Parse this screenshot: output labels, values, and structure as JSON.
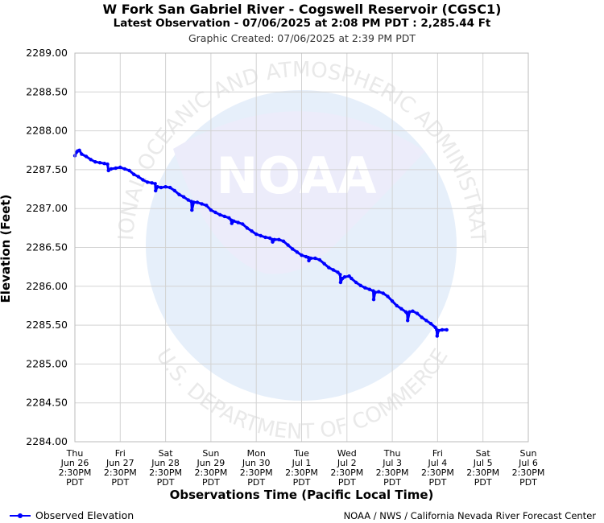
{
  "header": {
    "title": "W Fork San Gabriel River - Cogswell Reservoir (CGSC1)",
    "subtitle": "Latest Observation - 07/06/2025 at 2:08 PM PDT : 2,285.44 Ft",
    "created": "Graphic Created: 07/06/2025 at 2:39 PM PDT"
  },
  "footer": {
    "legend_label": "Observed Elevation",
    "credit": "NOAA / NWS / California Nevada River Forecast Center"
  },
  "watermark": {
    "top_text": "NATIONAL OCEANIC AND ATMOSPHERIC ADMINISTRATION",
    "bottom_text": "U.S. DEPARTMENT OF COMMERCE",
    "logo_text": "NOAA"
  },
  "chart_data": {
    "type": "line",
    "title": "W Fork San Gabriel River - Cogswell Reservoir (CGSC1)",
    "xlabel": "Observations Time (Pacific Local Time)",
    "ylabel": "Elevation (Feet)",
    "ylim": [
      2284.0,
      2289.0
    ],
    "yticks": [
      "2284.00",
      "2284.50",
      "2285.00",
      "2285.50",
      "2286.00",
      "2286.50",
      "2287.00",
      "2287.50",
      "2288.00",
      "2288.50",
      "2289.00"
    ],
    "xticks": [
      [
        "Thu",
        "Jun 26",
        "2:30PM",
        "PDT"
      ],
      [
        "Fri",
        "Jun 27",
        "2:30PM",
        "PDT"
      ],
      [
        "Sat",
        "Jun 28",
        "2:30PM",
        "PDT"
      ],
      [
        "Sun",
        "Jun 29",
        "2:30PM",
        "PDT"
      ],
      [
        "Mon",
        "Jun 30",
        "2:30PM",
        "PDT"
      ],
      [
        "Tue",
        "Jul 1",
        "2:30PM",
        "PDT"
      ],
      [
        "Wed",
        "Jul 2",
        "2:30PM",
        "PDT"
      ],
      [
        "Thu",
        "Jul 3",
        "2:30PM",
        "PDT"
      ],
      [
        "Fri",
        "Jul 4",
        "2:30PM",
        "PDT"
      ],
      [
        "Sat",
        "Jul 5",
        "2:30PM",
        "PDT"
      ],
      [
        "Sun",
        "Jul 6",
        "2:30PM",
        "PDT"
      ]
    ],
    "xlim_days": [
      0,
      10
    ],
    "grid": true,
    "legend_position": "bottom-left",
    "series": [
      {
        "name": "Observed Elevation",
        "color": "#0000ff",
        "points": [
          [
            0.0,
            2287.68
          ],
          [
            0.03,
            2287.72
          ],
          [
            0.06,
            2287.74
          ],
          [
            0.1,
            2287.75
          ],
          [
            0.15,
            2287.7
          ],
          [
            0.25,
            2287.67
          ],
          [
            0.35,
            2287.63
          ],
          [
            0.45,
            2287.6
          ],
          [
            0.55,
            2287.59
          ],
          [
            0.65,
            2287.58
          ],
          [
            0.72,
            2287.57
          ],
          [
            0.74,
            2287.49
          ],
          [
            0.8,
            2287.51
          ],
          [
            0.9,
            2287.52
          ],
          [
            1.0,
            2287.53
          ],
          [
            1.1,
            2287.51
          ],
          [
            1.2,
            2287.49
          ],
          [
            1.3,
            2287.44
          ],
          [
            1.4,
            2287.41
          ],
          [
            1.5,
            2287.37
          ],
          [
            1.6,
            2287.34
          ],
          [
            1.7,
            2287.33
          ],
          [
            1.77,
            2287.32
          ],
          [
            1.78,
            2287.23
          ],
          [
            1.82,
            2287.28
          ],
          [
            1.9,
            2287.27
          ],
          [
            2.0,
            2287.28
          ],
          [
            2.1,
            2287.27
          ],
          [
            2.2,
            2287.23
          ],
          [
            2.3,
            2287.18
          ],
          [
            2.4,
            2287.15
          ],
          [
            2.5,
            2287.11
          ],
          [
            2.57,
            2287.09
          ],
          [
            2.58,
            2286.98
          ],
          [
            2.62,
            2287.08
          ],
          [
            2.7,
            2287.08
          ],
          [
            2.8,
            2287.06
          ],
          [
            2.9,
            2287.04
          ],
          [
            3.0,
            2286.98
          ],
          [
            3.1,
            2286.95
          ],
          [
            3.2,
            2286.92
          ],
          [
            3.3,
            2286.9
          ],
          [
            3.4,
            2286.88
          ],
          [
            3.45,
            2286.85
          ],
          [
            3.46,
            2286.81
          ],
          [
            3.5,
            2286.84
          ],
          [
            3.6,
            2286.82
          ],
          [
            3.7,
            2286.8
          ],
          [
            3.8,
            2286.75
          ],
          [
            3.9,
            2286.71
          ],
          [
            4.0,
            2286.67
          ],
          [
            4.1,
            2286.65
          ],
          [
            4.2,
            2286.63
          ],
          [
            4.3,
            2286.62
          ],
          [
            4.35,
            2286.6
          ],
          [
            4.36,
            2286.57
          ],
          [
            4.4,
            2286.6
          ],
          [
            4.5,
            2286.6
          ],
          [
            4.6,
            2286.58
          ],
          [
            4.7,
            2286.53
          ],
          [
            4.8,
            2286.48
          ],
          [
            4.9,
            2286.44
          ],
          [
            5.0,
            2286.4
          ],
          [
            5.1,
            2286.38
          ],
          [
            5.15,
            2286.37
          ],
          [
            5.16,
            2286.33
          ],
          [
            5.2,
            2286.36
          ],
          [
            5.3,
            2286.36
          ],
          [
            5.4,
            2286.34
          ],
          [
            5.5,
            2286.29
          ],
          [
            5.6,
            2286.24
          ],
          [
            5.7,
            2286.21
          ],
          [
            5.8,
            2286.18
          ],
          [
            5.85,
            2286.15
          ],
          [
            5.86,
            2286.05
          ],
          [
            5.9,
            2286.1
          ],
          [
            5.95,
            2286.12
          ],
          [
            6.05,
            2286.13
          ],
          [
            6.1,
            2286.1
          ],
          [
            6.2,
            2286.05
          ],
          [
            6.3,
            2286.01
          ],
          [
            6.4,
            2285.98
          ],
          [
            6.5,
            2285.96
          ],
          [
            6.58,
            2285.94
          ],
          [
            6.59,
            2285.83
          ],
          [
            6.62,
            2285.92
          ],
          [
            6.7,
            2285.93
          ],
          [
            6.8,
            2285.91
          ],
          [
            6.9,
            2285.87
          ],
          [
            7.0,
            2285.81
          ],
          [
            7.1,
            2285.75
          ],
          [
            7.2,
            2285.71
          ],
          [
            7.3,
            2285.67
          ],
          [
            7.33,
            2285.65
          ],
          [
            7.34,
            2285.56
          ],
          [
            7.38,
            2285.67
          ],
          [
            7.45,
            2285.68
          ],
          [
            7.55,
            2285.65
          ],
          [
            7.65,
            2285.6
          ],
          [
            7.75,
            2285.56
          ],
          [
            7.85,
            2285.52
          ],
          [
            7.95,
            2285.47
          ],
          [
            7.98,
            2285.44
          ],
          [
            7.99,
            2285.36
          ],
          [
            8.02,
            2285.43
          ],
          [
            8.1,
            2285.44
          ],
          [
            8.2,
            2285.44
          ]
        ]
      }
    ]
  }
}
